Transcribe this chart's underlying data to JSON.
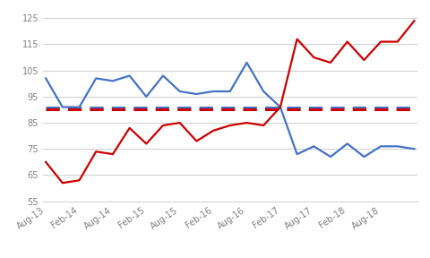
{
  "title": "",
  "x_labels": [
    "Aug-13",
    "Feb-14",
    "Aug-14",
    "Feb-15",
    "Aug-15",
    "Feb-16",
    "Aug-16",
    "Feb-17",
    "Aug-17",
    "Feb-18",
    "Aug-18"
  ],
  "x_positions": [
    0,
    6,
    12,
    18,
    24,
    30,
    36,
    42,
    48,
    54,
    60
  ],
  "blue_data": [
    [
      0,
      102
    ],
    [
      3,
      91
    ],
    [
      6,
      91
    ],
    [
      9,
      102
    ],
    [
      12,
      101
    ],
    [
      15,
      103
    ],
    [
      18,
      95
    ],
    [
      21,
      103
    ],
    [
      24,
      97
    ],
    [
      27,
      96
    ],
    [
      30,
      97
    ],
    [
      33,
      97
    ],
    [
      36,
      108
    ],
    [
      39,
      97
    ],
    [
      42,
      91
    ],
    [
      45,
      73
    ],
    [
      48,
      76
    ],
    [
      51,
      72
    ],
    [
      54,
      77
    ],
    [
      57,
      72
    ],
    [
      60,
      76
    ],
    [
      63,
      76
    ],
    [
      66,
      75
    ]
  ],
  "red_data": [
    [
      0,
      70
    ],
    [
      3,
      62
    ],
    [
      6,
      63
    ],
    [
      9,
      74
    ],
    [
      12,
      73
    ],
    [
      15,
      83
    ],
    [
      18,
      77
    ],
    [
      21,
      84
    ],
    [
      24,
      85
    ],
    [
      27,
      78
    ],
    [
      30,
      82
    ],
    [
      33,
      84
    ],
    [
      36,
      85
    ],
    [
      39,
      84
    ],
    [
      42,
      91
    ],
    [
      45,
      117
    ],
    [
      48,
      110
    ],
    [
      51,
      108
    ],
    [
      54,
      116
    ],
    [
      57,
      109
    ],
    [
      60,
      116
    ],
    [
      63,
      116
    ],
    [
      66,
      124
    ]
  ],
  "blue_hline": 91,
  "red_hline": 90,
  "ylim_min": 55,
  "ylim_max": 128,
  "yticks": [
    55,
    65,
    75,
    85,
    95,
    105,
    115,
    125
  ],
  "ytick_labels": [
    "55",
    "65",
    "75",
    "85",
    "95",
    "105",
    "115",
    "125"
  ],
  "blue_color": "#4472C4",
  "red_color": "#CC0000",
  "bg_color": "#FFFFFF",
  "grid_color": "#C8C8C8",
  "line_width": 1.6,
  "dash_linewidth": 2.2,
  "tick_label_color": "#808080",
  "tick_fontsize": 7.0
}
